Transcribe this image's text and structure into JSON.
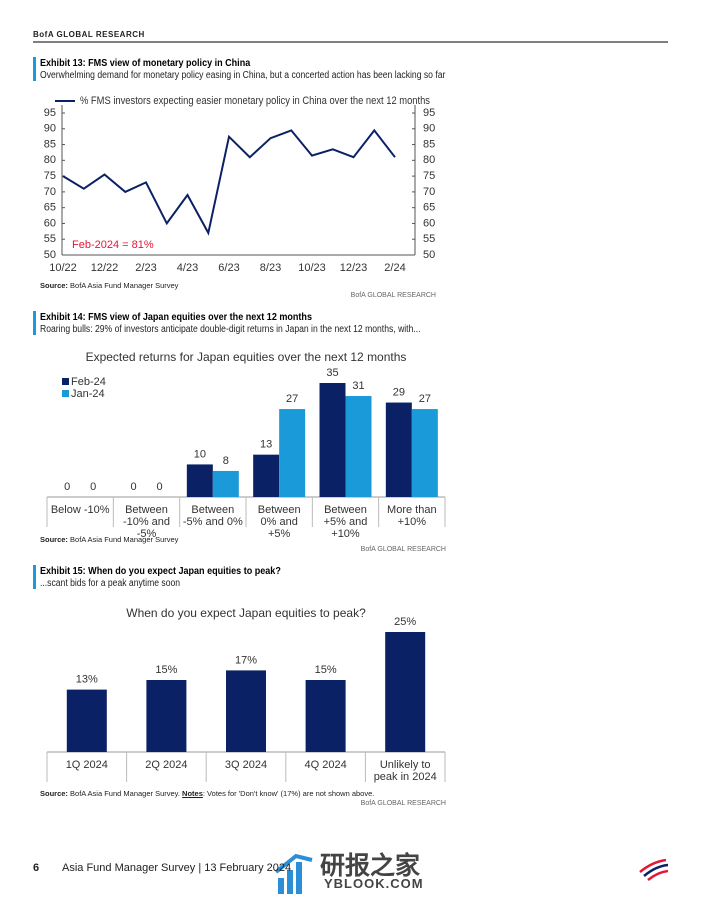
{
  "header": "BofA GLOBAL RESEARCH",
  "exhibits": [
    {
      "title": "Exhibit 13: FMS view of monetary policy in China",
      "subtitle": "Overwhelming demand for monetary policy easing in China, but a concerted action has been lacking so far",
      "source_label": "Source:",
      "source": "BofA Asia Fund Manager Survey",
      "credit": "BofA GLOBAL RESEARCH"
    },
    {
      "title": "Exhibit 14: FMS view of Japan equities over the next 12 months",
      "subtitle": "Roaring bulls: 29% of investors anticipate double-digit returns in Japan in the next 12 months, with...",
      "source_label": "Source:",
      "source": "BofA Asia Fund Manager Survey",
      "credit": "BofA GLOBAL RESEARCH"
    },
    {
      "title": "Exhibit 15: When do you expect Japan equities to peak?",
      "subtitle": "...scant bids for a peak anytime soon",
      "source_label": "Source:",
      "source": "BofA Asia Fund Manager Survey.",
      "notes_label": "Notes",
      "notes": ": Votes for 'Don't know' (17%) are not shown above.",
      "credit": "BofA GLOBAL RESEARCH"
    }
  ],
  "chart_data": [
    {
      "type": "line",
      "categories": [
        "10/22",
        null,
        "12/22",
        null,
        "2/23",
        null,
        "4/23",
        null,
        "6/23",
        null,
        "8/23",
        null,
        "10/23",
        null,
        "12/23",
        null,
        "2/24"
      ],
      "series": [
        {
          "name": "% FMS investors expecting easier monetary policy in China over the next 12 months",
          "color": "#0b2165",
          "values": [
            75,
            71,
            75.5,
            70,
            73,
            60,
            69,
            57,
            87.5,
            81,
            87,
            89.5,
            81.5,
            83.5,
            81,
            89.5,
            81
          ]
        }
      ],
      "ylim": [
        50,
        95
      ],
      "yticks": [
        50,
        55,
        60,
        65,
        70,
        75,
        80,
        85,
        90,
        95
      ],
      "y2lim": [
        50,
        95
      ],
      "y2ticks": [
        50,
        55,
        60,
        65,
        70,
        75,
        80,
        85,
        90,
        95
      ],
      "annotation": "Feb-2024 = 81%",
      "annotation_color": "#e31837"
    },
    {
      "type": "bar",
      "title": "Expected returns for Japan equities over the next 12 months",
      "categories": [
        "Below -10%",
        "Between -10% and -5%",
        "Between -5% and 0%",
        "Between 0% and +5%",
        "Between +5% and +10%",
        "More than +10%"
      ],
      "series": [
        {
          "name": "Feb-24",
          "color": "#0b2165",
          "values": [
            0,
            0,
            10,
            13,
            35,
            29
          ]
        },
        {
          "name": "Jan-24",
          "color": "#1a9ad9",
          "values": [
            0,
            0,
            8,
            27,
            31,
            27
          ]
        }
      ]
    },
    {
      "type": "bar",
      "title": "When do you expect Japan equities to peak?",
      "categories": [
        "1Q 2024",
        "2Q 2024",
        "3Q 2024",
        "4Q 2024",
        "Unlikely to peak in 2024"
      ],
      "values": [
        13,
        15,
        17,
        15,
        25
      ],
      "value_labels": [
        "13%",
        "15%",
        "17%",
        "15%",
        "25%"
      ],
      "color": "#0b2165"
    }
  ],
  "footer": {
    "page": "6",
    "text": "Asia Fund Manager Survey | 13 February 2024"
  },
  "watermark": {
    "cn": "研报之家",
    "en": "YBLOOK.COM"
  }
}
